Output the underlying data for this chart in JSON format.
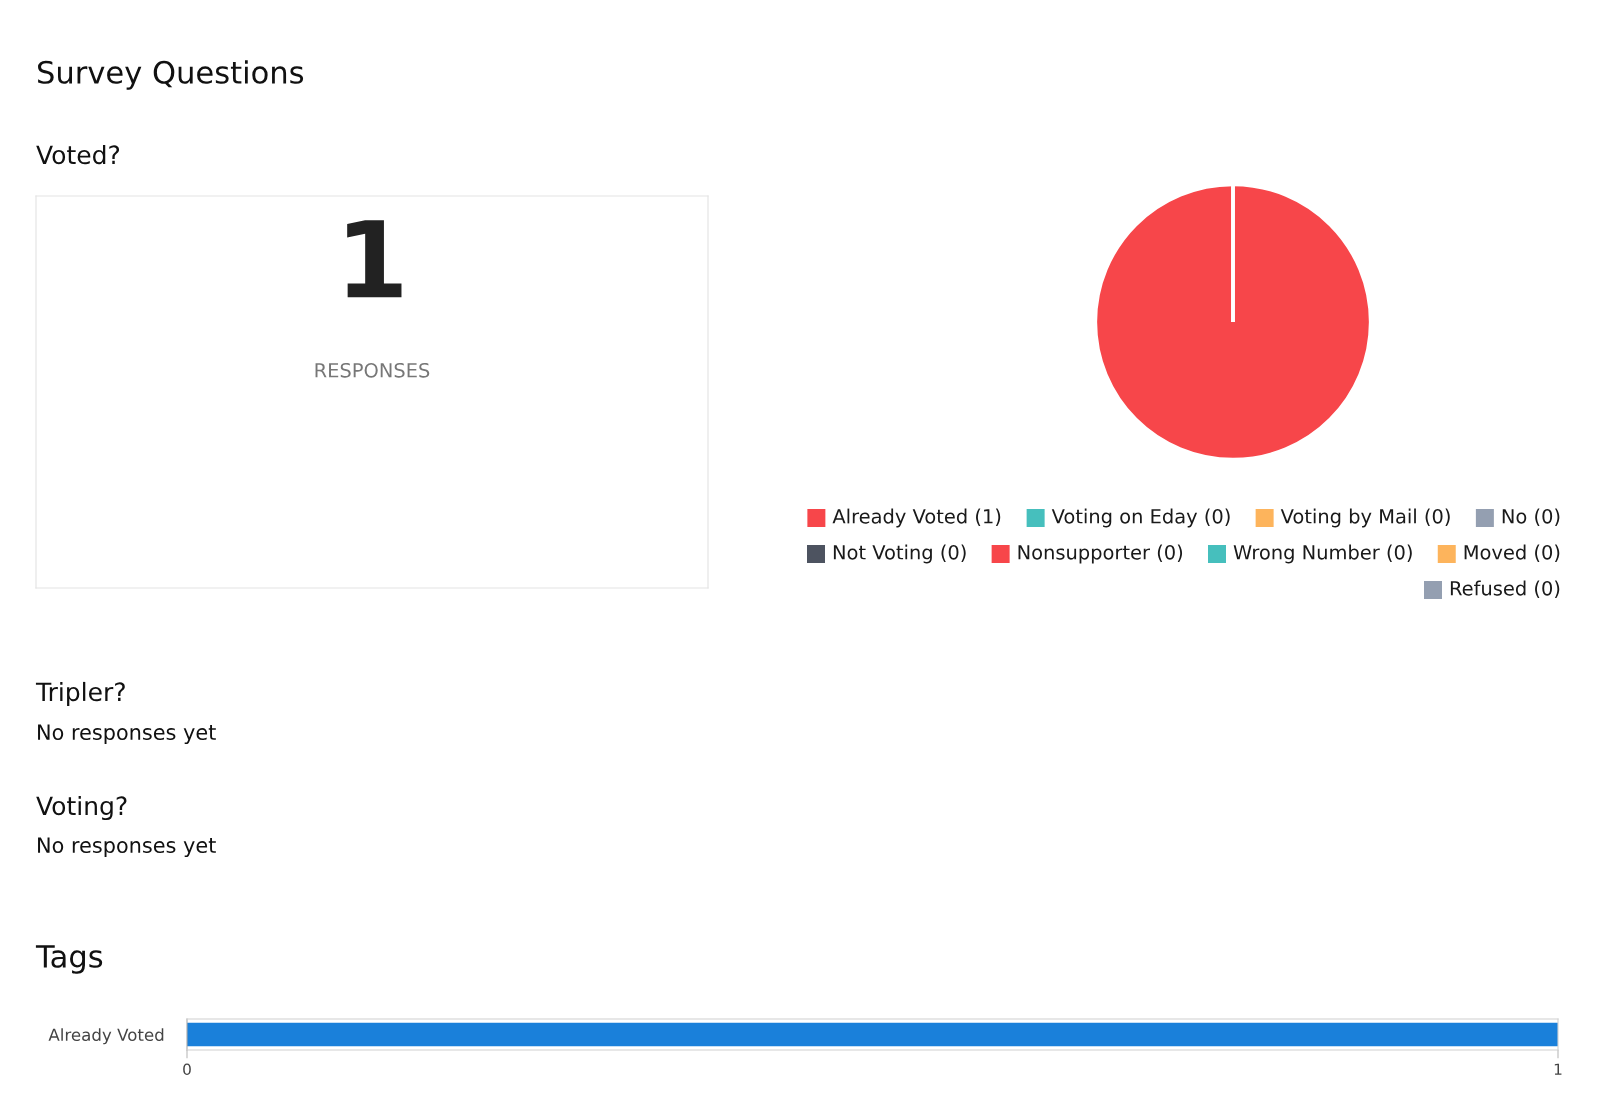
{
  "chart_data": [
    {
      "type": "other",
      "title": "Survey Questions",
      "subtitle": "Voted?",
      "annotations": [
        "1",
        "RESPONSES"
      ]
    },
    {
      "type": "pie",
      "categories": [
        "Already Voted (1)",
        "Voting on Eday (0)",
        "Voting by Mail (0)",
        "No (0)",
        "Not Voting (0)",
        "Nonsupporter (0)",
        "Wrong Number (0)",
        "Moved (0)",
        "Refused (0)"
      ],
      "values": [
        1,
        0,
        0,
        0,
        0,
        0,
        0,
        0,
        0
      ],
      "colors": [
        "#f7464a",
        "#46bfbd",
        "#fdb45c",
        "#949fb1",
        "#4d5360",
        "#f7464a",
        "#46bfbd",
        "#fdb45c",
        "#949fb1"
      ],
      "legend": "bottom"
    },
    {
      "type": "other",
      "title": "Tripler?",
      "annotations": [
        "No responses yet"
      ]
    },
    {
      "type": "other",
      "title": "Voting?",
      "annotations": [
        "No responses yet"
      ]
    },
    {
      "type": "bar",
      "orientation": "horizontal",
      "title": "Tags",
      "categories": [
        "Already Voted"
      ],
      "values": [
        1
      ],
      "color": "#1a80da",
      "xlim": [
        0,
        1
      ],
      "xticks": [
        0,
        1
      ]
    }
  ]
}
